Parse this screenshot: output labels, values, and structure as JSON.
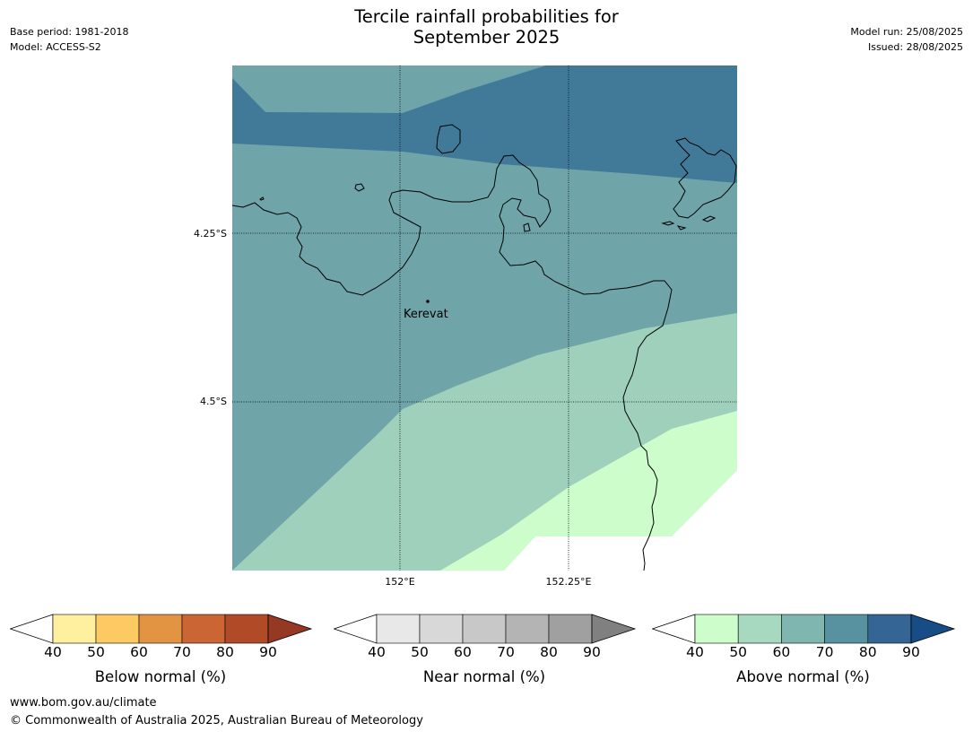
{
  "header": {
    "title_line1": "Tercile rainfall probabilities for",
    "title_line2": "September 2025",
    "base_period": "Base period: 1981-2018",
    "model": "Model: ACCESS-S2",
    "model_run": "Model run: 25/08/2025",
    "issued": "Issued: 28/08/2025"
  },
  "map": {
    "place_label": "Kerevat",
    "lat_labels": [
      "4.25°S",
      "4.5°S"
    ],
    "lon_labels": [
      "152°E",
      "152.25°E"
    ],
    "zone_colors": {
      "above_80": "#417a98",
      "above_70": "#6fa4a8",
      "above_60": "#9ed0bb",
      "above_50": "#ccfdcb"
    }
  },
  "colorbars": [
    {
      "label": "Below normal (%)",
      "ticks": [
        "40",
        "50",
        "60",
        "70",
        "80",
        "90"
      ],
      "colors": [
        "#fff0a0",
        "#fdc962",
        "#e29443",
        "#cc6534",
        "#b14a26",
        "#953924"
      ]
    },
    {
      "label": "Near normal (%)",
      "ticks": [
        "40",
        "50",
        "60",
        "70",
        "80",
        "90"
      ],
      "colors": [
        "#e8e8e8",
        "#d8d8d8",
        "#c8c8c8",
        "#b4b4b4",
        "#a0a0a0",
        "#808080"
      ]
    },
    {
      "label": "Above normal (%)",
      "ticks": [
        "40",
        "50",
        "60",
        "70",
        "80",
        "90"
      ],
      "colors": [
        "#ccfdcb",
        "#a6d9bf",
        "#80b6b0",
        "#5892a0",
        "#346594",
        "#164d86"
      ]
    }
  ],
  "footer": {
    "url": "www.bom.gov.au/climate",
    "copyright": "© Commonwealth of Australia 2025, Australian Bureau of Meteorology"
  }
}
